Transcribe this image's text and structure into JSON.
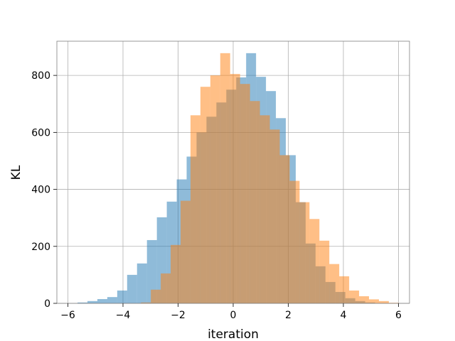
{
  "chart_data": {
    "type": "histogram",
    "title": "",
    "xlabel": "iteration",
    "ylabel": "KL",
    "xlim": [
      -6.4,
      6.4
    ],
    "ylim": [
      0,
      920
    ],
    "xticks": [
      -6,
      -4,
      -2,
      0,
      2,
      4,
      6
    ],
    "xtick_labels": [
      "−6",
      "−4",
      "−2",
      "0",
      "2",
      "4",
      "6"
    ],
    "yticks": [
      0,
      200,
      400,
      600,
      800
    ],
    "ytick_labels": [
      "0",
      "200",
      "400",
      "600",
      "800"
    ],
    "grid": true,
    "legend": "none",
    "series": [
      {
        "color": "#1f77b4",
        "alpha": 0.5,
        "bins": [
          {
            "x0": -5.65,
            "x1": -5.29,
            "count": 3
          },
          {
            "x0": -5.29,
            "x1": -4.93,
            "count": 8
          },
          {
            "x0": -4.93,
            "x1": -4.57,
            "count": 15
          },
          {
            "x0": -4.57,
            "x1": -4.21,
            "count": 22
          },
          {
            "x0": -4.21,
            "x1": -3.85,
            "count": 45
          },
          {
            "x0": -3.85,
            "x1": -3.49,
            "count": 100
          },
          {
            "x0": -3.49,
            "x1": -3.13,
            "count": 140
          },
          {
            "x0": -3.13,
            "x1": -2.77,
            "count": 222
          },
          {
            "x0": -2.77,
            "x1": -2.41,
            "count": 302
          },
          {
            "x0": -2.41,
            "x1": -2.05,
            "count": 357
          },
          {
            "x0": -2.05,
            "x1": -1.69,
            "count": 435
          },
          {
            "x0": -1.69,
            "x1": -1.33,
            "count": 515
          },
          {
            "x0": -1.33,
            "x1": -0.97,
            "count": 600
          },
          {
            "x0": -0.97,
            "x1": -0.61,
            "count": 655
          },
          {
            "x0": -0.61,
            "x1": -0.25,
            "count": 705
          },
          {
            "x0": -0.25,
            "x1": 0.11,
            "count": 750
          },
          {
            "x0": 0.11,
            "x1": 0.47,
            "count": 793
          },
          {
            "x0": 0.47,
            "x1": 0.83,
            "count": 878
          },
          {
            "x0": 0.83,
            "x1": 1.19,
            "count": 795
          },
          {
            "x0": 1.19,
            "x1": 1.55,
            "count": 745
          },
          {
            "x0": 1.55,
            "x1": 1.91,
            "count": 650
          },
          {
            "x0": 1.91,
            "x1": 2.27,
            "count": 520
          },
          {
            "x0": 2.27,
            "x1": 2.63,
            "count": 355
          },
          {
            "x0": 2.63,
            "x1": 2.99,
            "count": 210
          },
          {
            "x0": 2.99,
            "x1": 3.35,
            "count": 130
          },
          {
            "x0": 3.35,
            "x1": 3.71,
            "count": 75
          },
          {
            "x0": 3.71,
            "x1": 4.07,
            "count": 40
          },
          {
            "x0": 4.07,
            "x1": 4.43,
            "count": 18
          },
          {
            "x0": 4.43,
            "x1": 4.79,
            "count": 8
          },
          {
            "x0": 4.79,
            "x1": 5.15,
            "count": 3
          }
        ]
      },
      {
        "color": "#ff7f0e",
        "alpha": 0.5,
        "bins": [
          {
            "x0": -3.35,
            "x1": -2.99,
            "count": 3
          },
          {
            "x0": -2.99,
            "x1": -2.63,
            "count": 48
          },
          {
            "x0": -2.63,
            "x1": -2.27,
            "count": 105
          },
          {
            "x0": -2.27,
            "x1": -1.91,
            "count": 205
          },
          {
            "x0": -1.91,
            "x1": -1.55,
            "count": 360
          },
          {
            "x0": -1.55,
            "x1": -1.19,
            "count": 660
          },
          {
            "x0": -1.19,
            "x1": -0.83,
            "count": 760
          },
          {
            "x0": -0.83,
            "x1": -0.47,
            "count": 800
          },
          {
            "x0": -0.47,
            "x1": -0.11,
            "count": 878
          },
          {
            "x0": -0.11,
            "x1": 0.25,
            "count": 805
          },
          {
            "x0": 0.25,
            "x1": 0.61,
            "count": 770
          },
          {
            "x0": 0.61,
            "x1": 0.97,
            "count": 710
          },
          {
            "x0": 0.97,
            "x1": 1.33,
            "count": 660
          },
          {
            "x0": 1.33,
            "x1": 1.69,
            "count": 610
          },
          {
            "x0": 1.69,
            "x1": 2.05,
            "count": 520
          },
          {
            "x0": 2.05,
            "x1": 2.41,
            "count": 430
          },
          {
            "x0": 2.41,
            "x1": 2.77,
            "count": 355
          },
          {
            "x0": 2.77,
            "x1": 3.13,
            "count": 296
          },
          {
            "x0": 3.13,
            "x1": 3.49,
            "count": 220
          },
          {
            "x0": 3.49,
            "x1": 3.85,
            "count": 138
          },
          {
            "x0": 3.85,
            "x1": 4.21,
            "count": 95
          },
          {
            "x0": 4.21,
            "x1": 4.57,
            "count": 45
          },
          {
            "x0": 4.57,
            "x1": 4.93,
            "count": 25
          },
          {
            "x0": 4.93,
            "x1": 5.29,
            "count": 14
          },
          {
            "x0": 5.29,
            "x1": 5.65,
            "count": 8
          },
          {
            "x0": 5.65,
            "x1": 6.01,
            "count": 2
          }
        ]
      }
    ]
  }
}
